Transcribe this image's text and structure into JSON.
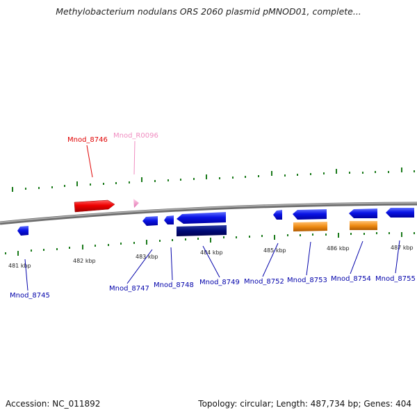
{
  "title": "Methylobacterium nodulans ORS 2060 plasmid pMNOD01, complete...",
  "footer": {
    "accession": "Accession: NC_011892",
    "summary": "Topology: circular; Length: 487,734 bp; Genes: 404"
  },
  "scale_labels": [
    "481 kbp",
    "482 kbp",
    "483 kbp",
    "484 kbp",
    "485 kbp",
    "486 kbp",
    "487 kbp"
  ],
  "genes": [
    {
      "id": "Mnod_8746",
      "color": "#e00000"
    },
    {
      "id": "Mnod_R0096",
      "color": "#f08cc0"
    },
    {
      "id": "Mnod_8745",
      "color": "#0000aa"
    },
    {
      "id": "Mnod_8747",
      "color": "#0000aa"
    },
    {
      "id": "Mnod_8748",
      "color": "#0000aa"
    },
    {
      "id": "Mnod_8749",
      "color": "#0000aa"
    },
    {
      "id": "Mnod_8752",
      "color": "#0000aa"
    },
    {
      "id": "Mnod_8753",
      "color": "#0000aa"
    },
    {
      "id": "Mnod_8754",
      "color": "#0000aa"
    },
    {
      "id": "Mnod_8755",
      "color": "#0000aa"
    }
  ],
  "colors": {
    "forward_cds": "#e00000",
    "rna": "#f5a0d0",
    "reverse_cds": "#0a14e6",
    "dark_feature": "#000a78",
    "orange_feature": "#f08c14",
    "tick": "#1a7a1a",
    "backbone": "#808080"
  }
}
